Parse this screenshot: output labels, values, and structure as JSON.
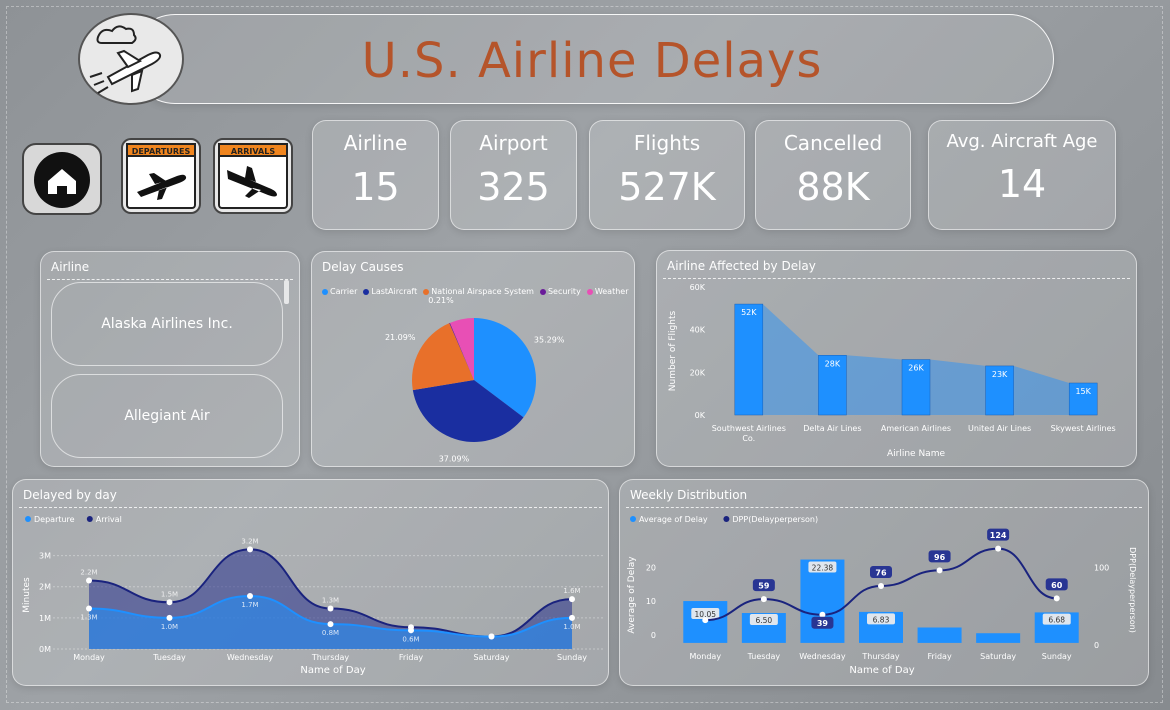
{
  "header": {
    "title": "U.S. Airline Delays"
  },
  "nav": {
    "departures_label": "DEPARTURES",
    "arrivals_label": "ARRIVALS"
  },
  "kpis": [
    {
      "label": "Airline",
      "value": "15"
    },
    {
      "label": "Airport",
      "value": "325"
    },
    {
      "label": "Flights",
      "value": "527K"
    },
    {
      "label": "Cancelled",
      "value": "88K"
    },
    {
      "label": "Avg. Aircraft Age",
      "value": "14"
    }
  ],
  "airline_slicer": {
    "title": "Airline",
    "items": [
      "Alaska Airlines Inc.",
      "Allegiant Air"
    ]
  },
  "colors": {
    "carrier": "#1e90ff",
    "lastaircraft": "#1a2ea0",
    "nas": "#e8702a",
    "security": "#6a1b9a",
    "weather": "#e84fb5",
    "bar": "#1e90ff",
    "line": "#1a237e"
  },
  "chart_data": [
    {
      "type": "pie",
      "title": "Delay Causes",
      "labels": [
        "Carrier",
        "LastAircraft",
        "National Airspace System",
        "Security",
        "Weather"
      ],
      "values": [
        35.29,
        37.09,
        21.09,
        0.21,
        6.32
      ],
      "data_labels": [
        "35.29%",
        "37.09%",
        "21.09%",
        "0.21%",
        ""
      ],
      "legend": "top"
    },
    {
      "type": "bar",
      "title": "Airline Affected by Delay",
      "categories": [
        "Southwest Airlines Co.",
        "Delta Air Lines Inc.",
        "American Airlines Inc.",
        "United Air Lines Inc.",
        "Skywest Airlines"
      ],
      "category_labels": [
        "Southwest Airlines",
        "Delta Air Lines",
        "American Airlines",
        "United Air Lines",
        "Skywest Airlines"
      ],
      "category_labels_line2": [
        "Co.",
        "",
        "",
        "",
        ""
      ],
      "values": [
        52,
        28,
        26,
        23,
        15
      ],
      "data_labels": [
        "52K",
        "28K",
        "26K",
        "23K",
        "15K"
      ],
      "xlabel": "Airline Name",
      "ylabel": "Number of Flights",
      "yticks": [
        "0K",
        "20K",
        "40K",
        "60K"
      ],
      "ylim": [
        0,
        60
      ],
      "grid": false
    },
    {
      "type": "area",
      "title": "Delayed by day",
      "categories": [
        "Monday",
        "Tuesday",
        "Wednesday",
        "Thursday",
        "Friday",
        "Saturday",
        "Sunday"
      ],
      "series": [
        {
          "name": "Departure",
          "values": [
            1.3,
            1.0,
            1.7,
            0.8,
            0.6,
            0.4,
            1.0
          ],
          "data_labels": [
            "1.3M",
            "1.0M",
            "1.7M",
            "0.8M",
            "0.6M",
            "",
            "1.0M"
          ]
        },
        {
          "name": "Arrival",
          "values": [
            2.2,
            1.5,
            3.2,
            1.3,
            0.7,
            0.4,
            1.6
          ],
          "data_labels": [
            "2.2M",
            "1.5M",
            "3.2M",
            "1.3M",
            "",
            "",
            "1.6M"
          ]
        }
      ],
      "xlabel": "Name of Day",
      "ylabel": "Minutes",
      "yticks": [
        "0M",
        "1M",
        "2M",
        "3M"
      ],
      "ylim": [
        0,
        3.5
      ],
      "legend": "top-left"
    },
    {
      "type": "bar",
      "title": "Weekly Distribution",
      "categories": [
        "Monday",
        "Tuesday",
        "Wednesday",
        "Thursday",
        "Friday",
        "Saturday",
        "Sunday"
      ],
      "series": [
        {
          "name": "Average of Delay",
          "values": [
            10.05,
            6.5,
            22.38,
            6.83,
            2.2,
            0.5,
            6.68
          ],
          "data_labels": [
            "10.05",
            "6.50",
            "22.38",
            "6.83",
            "",
            "",
            "6.68"
          ]
        },
        {
          "name": "DPP(Delayperperson)",
          "values": [
            32,
            59,
            39,
            76,
            96,
            124,
            60
          ],
          "data_labels": [
            "",
            "59",
            "39",
            "76",
            "96",
            "124",
            "60"
          ]
        }
      ],
      "xlabel": "Name of Day",
      "ylabel": "Average of Delay",
      "y2label": "DPP(Delayperperson)",
      "yticks": [
        "0",
        "10",
        "20"
      ],
      "y2ticks": [
        "0",
        "100"
      ],
      "ylim": [
        -3,
        27
      ],
      "y2lim": [
        0,
        130
      ],
      "legend": "top-left"
    }
  ]
}
